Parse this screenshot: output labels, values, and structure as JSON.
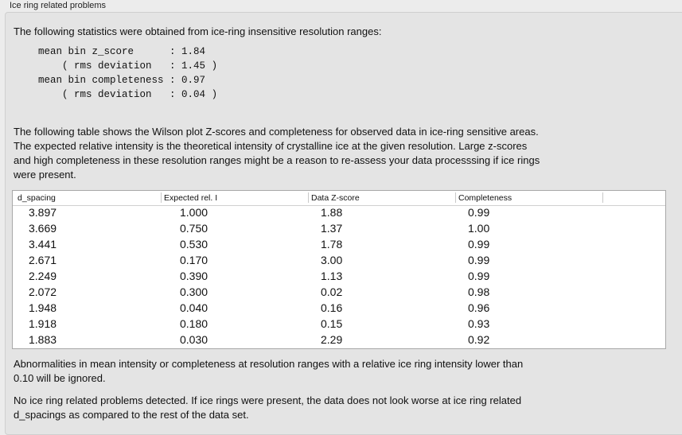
{
  "group_title": "Ice ring related problems",
  "intro": "The following statistics were obtained from ice-ring insensitive resolution ranges:",
  "stats": [
    {
      "label": "mean bin z_score      ",
      "value": "1.84",
      "suffix": ""
    },
    {
      "label": "    ( rms deviation   ",
      "value": "1.45",
      "suffix": " )"
    },
    {
      "label": "mean bin completeness ",
      "value": "0.97",
      "suffix": ""
    },
    {
      "label": "    ( rms deviation   ",
      "value": "0.04",
      "suffix": " )"
    }
  ],
  "table_description": [
    "The following table shows the Wilson plot Z-scores and completeness for observed data in ice-ring sensitive areas.",
    "The expected relative intensity is the theoretical intensity of crystalline ice at the given resolution. Large z-scores",
    "and high completeness in these resolution ranges might be a reason to re-assess your data processsing if ice rings",
    "were present."
  ],
  "table": {
    "columns": [
      "d_spacing",
      "Expected rel. I",
      "Data Z-score",
      "Completeness"
    ],
    "rows": [
      [
        "3.897",
        "1.000",
        "1.88",
        "0.99"
      ],
      [
        "3.669",
        "0.750",
        "1.37",
        "1.00"
      ],
      [
        "3.441",
        "0.530",
        "1.78",
        "0.99"
      ],
      [
        "2.671",
        "0.170",
        "3.00",
        "0.99"
      ],
      [
        "2.249",
        "0.390",
        "1.13",
        "0.99"
      ],
      [
        "2.072",
        "0.300",
        "0.02",
        "0.98"
      ],
      [
        "1.948",
        "0.040",
        "0.16",
        "0.96"
      ],
      [
        "1.918",
        "0.180",
        "0.15",
        "0.93"
      ],
      [
        "1.883",
        "0.030",
        "2.29",
        "0.92"
      ]
    ]
  },
  "note": [
    "Abnormalities in mean intensity or completeness at resolution ranges with a relative ice ring intensity lower than",
    "0.10 will be ignored."
  ],
  "conclusion": [
    "No ice ring related problems detected. If ice rings were present, the data does not look worse at ice ring related",
    "d_spacings as compared to the rest of the data set."
  ]
}
